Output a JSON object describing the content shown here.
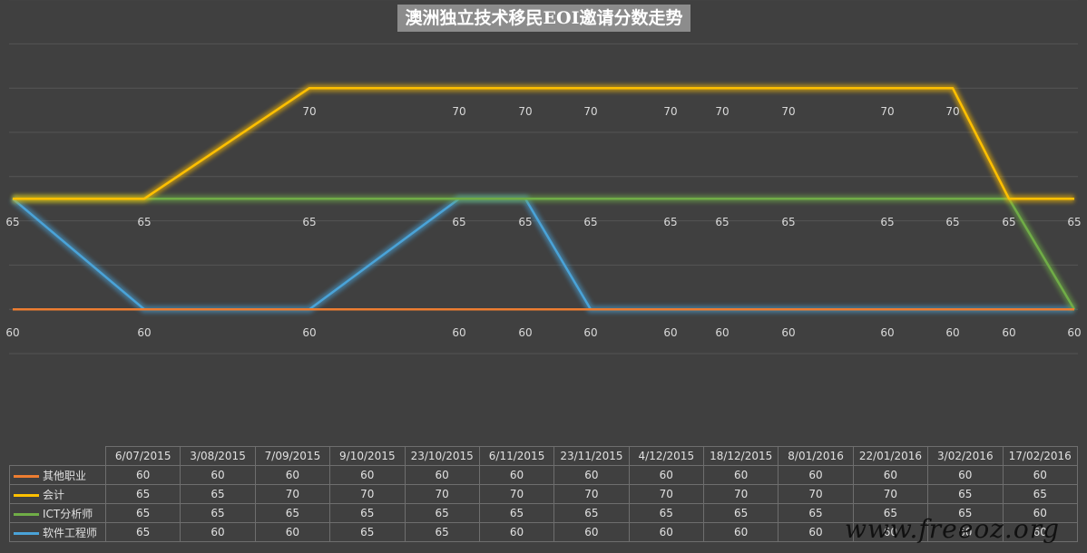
{
  "chart_data": {
    "type": "line",
    "title": "澳洲独立技术移民EOI邀请分数走势",
    "xlabel": "",
    "ylabel": "",
    "categories": [
      "6/07/2015",
      "3/08/2015",
      "7/09/2015",
      "9/10/2015",
      "23/10/2015",
      "6/11/2015",
      "23/11/2015",
      "4/12/2015",
      "18/12/2015",
      "8/01/2016",
      "22/01/2016",
      "3/02/2016",
      "17/02/2016"
    ],
    "ylim": [
      58,
      74
    ],
    "grid": true,
    "legend": "table-bottom",
    "series": [
      {
        "name": "其他职业",
        "color": "#ed7d31",
        "values": [
          60,
          60,
          60,
          60,
          60,
          60,
          60,
          60,
          60,
          60,
          60,
          60,
          60
        ]
      },
      {
        "name": "会计",
        "color": "#ffc000",
        "values": [
          65,
          65,
          70,
          70,
          70,
          70,
          70,
          70,
          70,
          70,
          70,
          65,
          65
        ]
      },
      {
        "name": "ICT分析师",
        "color": "#70ad47",
        "values": [
          65,
          65,
          65,
          65,
          65,
          65,
          65,
          65,
          65,
          65,
          65,
          65,
          60
        ]
      },
      {
        "name": "软件工程师",
        "color": "#4aa3d8",
        "values": [
          65,
          60,
          60,
          65,
          65,
          60,
          60,
          60,
          60,
          60,
          60,
          60,
          60
        ]
      }
    ]
  },
  "watermark": "www.freeoz.org"
}
